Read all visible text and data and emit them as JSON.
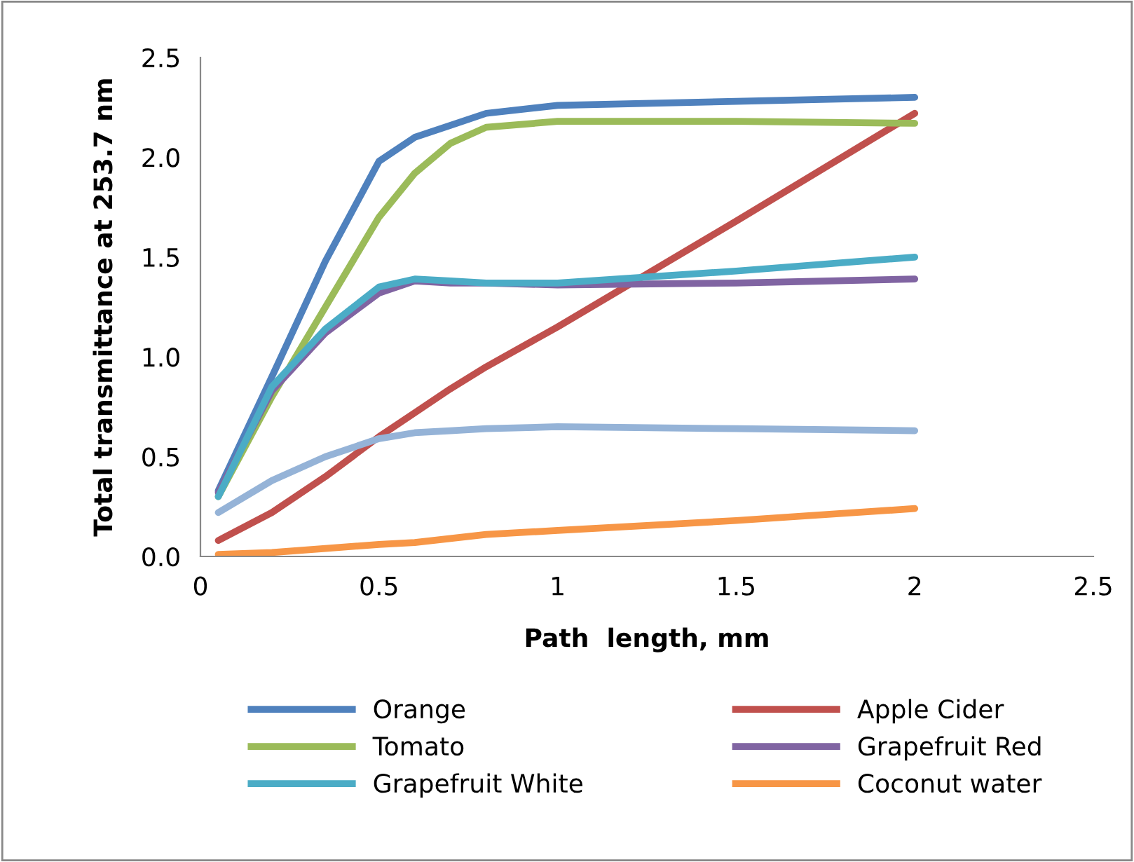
{
  "chart_data": {
    "type": "line",
    "xlabel": "Path  length, mm",
    "ylabel": "Total transmittance at 253.7 nm",
    "x": [
      0.05,
      0.2,
      0.35,
      0.5,
      0.6,
      0.7,
      0.8,
      1,
      1.5,
      2
    ],
    "series": [
      {
        "name": "Orange",
        "color": "#4f81bd",
        "values": [
          0.33,
          0.9,
          1.48,
          1.98,
          2.1,
          2.16,
          2.22,
          2.26,
          2.28,
          2.3
        ]
      },
      {
        "name": "Apple Cider",
        "color": "#c0504d",
        "values": [
          0.08,
          0.22,
          0.4,
          0.6,
          0.72,
          0.84,
          0.95,
          1.15,
          1.68,
          2.22
        ]
      },
      {
        "name": "Tomato",
        "color": "#9bbb59",
        "values": [
          0.3,
          0.8,
          1.25,
          1.7,
          1.92,
          2.07,
          2.15,
          2.18,
          2.18,
          2.17
        ]
      },
      {
        "name": "Grapefruit Red",
        "color": "#8064a2",
        "values": [
          0.32,
          0.83,
          1.12,
          1.32,
          1.38,
          1.37,
          1.37,
          1.36,
          1.37,
          1.39
        ]
      },
      {
        "name": "Grapefruit White",
        "color": "#4bacc6",
        "values": [
          0.3,
          0.85,
          1.14,
          1.35,
          1.39,
          1.38,
          1.37,
          1.37,
          1.43,
          1.5
        ]
      },
      {
        "name": "Coconut water",
        "color": "#f79646",
        "values": [
          0.01,
          0.02,
          0.04,
          0.06,
          0.07,
          0.09,
          0.11,
          0.13,
          0.18,
          0.24
        ]
      },
      {
        "color": "#95b3d7",
        "values": [
          0.22,
          0.38,
          0.5,
          0.59,
          0.62,
          0.63,
          0.64,
          0.65,
          0.64,
          0.63
        ]
      }
    ],
    "xlim": [
      0,
      2.5
    ],
    "xticks": [
      0,
      0.5,
      1,
      1.5,
      2,
      2.5
    ],
    "ylim": [
      0,
      2.5
    ],
    "yticks": [
      {
        "value": 0,
        "label": "0.0"
      },
      {
        "value": 0.5,
        "label": "0.5"
      },
      {
        "value": 1,
        "label": "1.0"
      },
      {
        "value": 1.5,
        "label": "1.5"
      },
      {
        "value": 2,
        "label": "2.0"
      },
      {
        "value": 2.5,
        "label": "2.5"
      }
    ],
    "legend": "bottom",
    "grid": false
  }
}
